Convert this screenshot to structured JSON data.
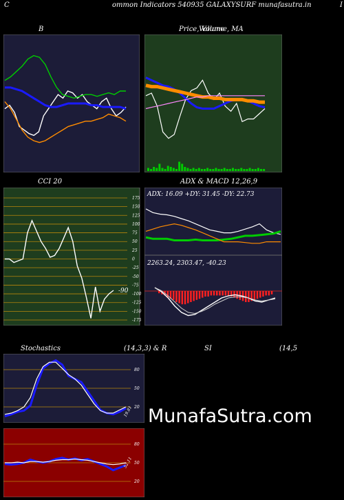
{
  "header": {
    "left_letter": "C",
    "title": "ommon  Indicators 540935 GALAXYSURF munafasutra.in",
    "right_letter": "I"
  },
  "panels": {
    "bollinger": {
      "title": "B"
    },
    "price": {
      "title": "Price,  Volume,  MA",
      "overlay": "Volume"
    },
    "cci": {
      "title": "CCI 20",
      "ticks": [
        "175",
        "150",
        "125",
        "100",
        "75",
        "50",
        "25",
        "0",
        "-25",
        "-50",
        "-75",
        "-100",
        "-125",
        "-150",
        "-175"
      ],
      "last_value": "-90"
    },
    "adx_macd": {
      "title": "ADX  & MACD 12,26,9",
      "adx_text": "ADX: 16.09  +DY: 31.45 -DY: 22.73",
      "macd_text": "2263.24,  2303.47,  -40.23"
    },
    "stochastics": {
      "title": "Stochastics",
      "params": "(14,3,3) & R",
      "ticks": [
        "80",
        "50",
        "20"
      ],
      "last_value": "19.81"
    },
    "rsi": {
      "title": "SI",
      "params": "(14,5",
      "ticks": [
        "80",
        "50",
        "20"
      ],
      "last_value": "52.11"
    }
  },
  "watermark": "MunafaSutra.com",
  "colors": {
    "dark_panel": "#1c1c38",
    "green_panel": "#1e3d1e",
    "red_panel": "#8b0000",
    "blue_line": "#1a1aff",
    "white_line": "#ffffff",
    "orange_line": "#ff8c00",
    "green_line": "#00cc00"
  },
  "chart_data": [
    {
      "type": "line",
      "name": "Bollinger Bands",
      "series": [
        {
          "color": "#ffffff",
          "values": [
            62,
            64,
            60,
            52,
            50,
            48,
            47,
            49,
            58,
            62,
            66,
            70,
            68,
            72,
            71,
            68,
            70,
            66,
            64,
            62,
            66,
            68,
            62,
            58,
            60,
            63
          ]
        },
        {
          "color": "#00cc00",
          "values": [
            78,
            80,
            83,
            86,
            90,
            92,
            91,
            87,
            80,
            74,
            70,
            69,
            68,
            69,
            70,
            70,
            69,
            70,
            71,
            70,
            72,
            72
          ]
        },
        {
          "color": "#1a1aff",
          "values": [
            74,
            74,
            73,
            72,
            70,
            68,
            66,
            64,
            63,
            63,
            64,
            65,
            65,
            65,
            65,
            64,
            64,
            63,
            63,
            63,
            63,
            62
          ]
        },
        {
          "color": "#ff8c00",
          "values": [
            66,
            62,
            56,
            50,
            46,
            44,
            43,
            44,
            46,
            48,
            50,
            52,
            53,
            54,
            55,
            55,
            56,
            57,
            59,
            58,
            57,
            55
          ]
        }
      ]
    },
    {
      "type": "line",
      "name": "Price, Volume, MA",
      "series": [
        {
          "color": "#ffffff",
          "values": [
            58,
            60,
            50,
            30,
            25,
            28,
            42,
            55,
            62,
            64,
            70,
            60,
            55,
            60,
            50,
            46,
            52,
            38,
            40,
            40,
            44,
            48
          ]
        },
        {
          "color": "#1a1aff",
          "values": [
            72,
            70,
            68,
            66,
            65,
            63,
            60,
            56,
            52,
            49,
            48,
            48,
            48,
            50,
            52,
            54,
            55,
            55,
            54,
            52,
            50,
            49
          ]
        },
        {
          "color": "#ff8c00",
          "values": [
            66,
            65,
            65,
            64,
            63,
            62,
            61,
            60,
            59,
            58,
            57,
            57,
            56,
            56,
            55,
            55,
            55,
            55,
            54,
            54,
            53,
            53
          ]
        },
        {
          "color": "#ff88ff",
          "values": [
            48,
            49,
            50,
            51,
            52,
            53,
            54,
            55,
            56,
            57,
            57,
            58,
            58,
            58,
            58,
            58,
            58,
            58,
            58,
            58,
            58,
            58
          ]
        }
      ],
      "volume": [
        3,
        2,
        4,
        3,
        7,
        3,
        2,
        5,
        4,
        3,
        2,
        9,
        7,
        4,
        3,
        2,
        3,
        2,
        3,
        2,
        2,
        3,
        2,
        2,
        3,
        2,
        2,
        3,
        2,
        2,
        3,
        2,
        2,
        3,
        2,
        2,
        3,
        2,
        2,
        3,
        2,
        2
      ]
    },
    {
      "type": "line",
      "name": "CCI 20",
      "ylim": [
        -175,
        175
      ],
      "values": [
        0,
        0,
        -10,
        -5,
        0,
        75,
        110,
        80,
        50,
        30,
        5,
        10,
        30,
        60,
        90,
        50,
        -20,
        -55,
        -110,
        -170,
        -80,
        -150,
        -115,
        -100,
        -90
      ]
    },
    {
      "type": "line",
      "name": "ADX",
      "series": [
        {
          "color": "#ffffff",
          "values": [
            60,
            55,
            53,
            52,
            50,
            47,
            44,
            40,
            36,
            32,
            30,
            28,
            28,
            30,
            33,
            36,
            40,
            32,
            28,
            26
          ]
        },
        {
          "color": "#00cc00",
          "values": [
            22,
            20,
            20,
            20,
            18,
            18,
            18,
            19,
            18,
            18,
            18,
            19,
            20,
            22,
            24,
            24,
            25,
            26,
            27,
            30
          ]
        },
        {
          "color": "#ff8c00",
          "values": [
            30,
            33,
            36,
            38,
            40,
            38,
            35,
            32,
            28,
            24,
            20,
            16,
            16,
            16,
            15,
            14,
            14,
            16,
            16,
            16
          ]
        }
      ]
    },
    {
      "type": "bar",
      "name": "MACD Histogram",
      "values": [
        -2,
        -3,
        -4,
        -6,
        -7,
        -8,
        -10,
        -11,
        -12,
        -12,
        -11,
        -10,
        -9,
        -8,
        -7,
        -6,
        -5,
        -5,
        -4,
        -4,
        -4,
        -4,
        -4,
        -4,
        -4,
        -5,
        -6,
        -7,
        -8,
        -9,
        -10,
        -10,
        -9,
        -8,
        -7,
        -6,
        -5,
        -4,
        -4,
        -3
      ]
    },
    {
      "type": "line",
      "name": "Stochastics",
      "ylim": [
        0,
        100
      ],
      "series": [
        {
          "color": "#1a1aff",
          "values": [
            5,
            8,
            12,
            14,
            22,
            55,
            82,
            90,
            95,
            88,
            70,
            65,
            60,
            45,
            30,
            15,
            10,
            8,
            12,
            18
          ]
        },
        {
          "color": "#ffffff",
          "values": [
            8,
            10,
            14,
            20,
            35,
            65,
            85,
            92,
            92,
            82,
            72,
            65,
            55,
            40,
            25,
            14,
            10,
            10,
            15,
            20
          ]
        }
      ]
    },
    {
      "type": "line",
      "name": "RSI",
      "ylim": [
        0,
        100
      ],
      "series": [
        {
          "color": "#1a1aff",
          "values": [
            48,
            47,
            48,
            50,
            55,
            52,
            50,
            52,
            56,
            58,
            55,
            57,
            54,
            56,
            52,
            48,
            44,
            38,
            42,
            46
          ]
        },
        {
          "color": "#ffffff",
          "values": [
            50,
            50,
            51,
            50,
            52,
            52,
            51,
            52,
            54,
            55,
            55,
            56,
            55,
            54,
            52,
            50,
            48,
            47,
            48,
            50
          ]
        }
      ]
    }
  ]
}
